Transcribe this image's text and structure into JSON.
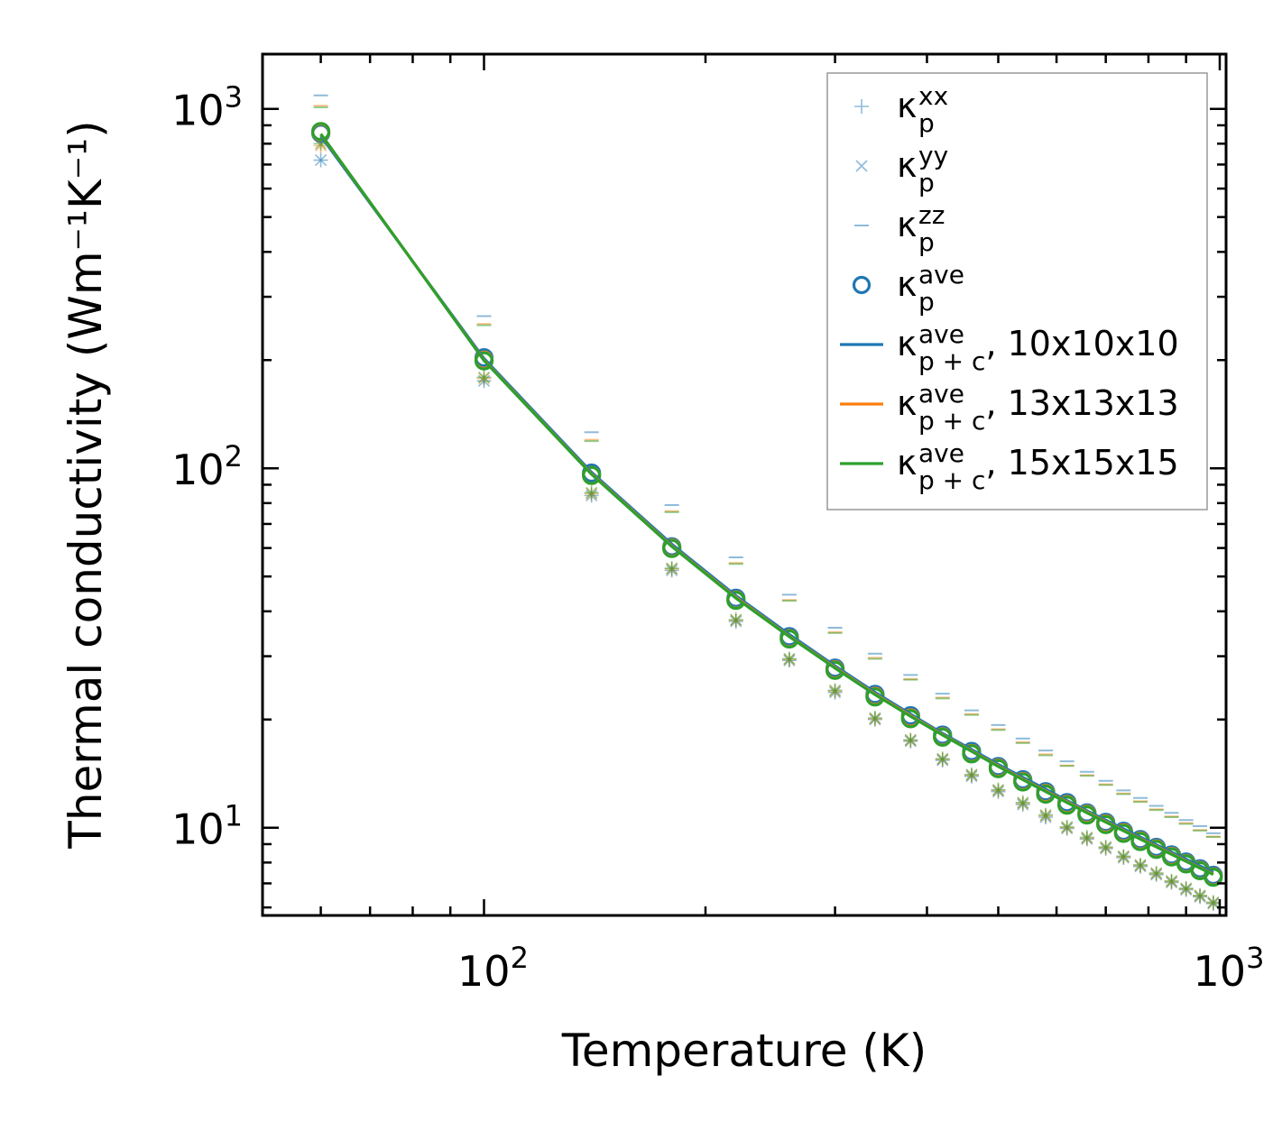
{
  "chart_data": {
    "type": "line",
    "xscale": "log",
    "yscale": "log",
    "xlabel": "Temperature (K)",
    "ylabel": "Thermal conductivity (Wm⁻¹K⁻¹)",
    "xlim": [
      50,
      1020
    ],
    "ylim": [
      5.7,
      1420
    ],
    "x_ticks": [
      {
        "value": 100,
        "label_base": "10",
        "label_exp": "2"
      },
      {
        "value": 1000,
        "label_base": "10",
        "label_exp": "3"
      }
    ],
    "y_ticks": [
      {
        "value": 10,
        "label_base": "10",
        "label_exp": "1"
      },
      {
        "value": 100,
        "label_base": "10",
        "label_exp": "2"
      },
      {
        "value": 1000,
        "label_base": "10",
        "label_exp": "3"
      }
    ],
    "x": [
      60,
      100,
      140,
      180,
      220,
      260,
      300,
      340,
      380,
      420,
      460,
      500,
      540,
      580,
      620,
      660,
      700,
      740,
      780,
      820,
      860,
      900,
      940,
      980
    ],
    "grids": [
      {
        "name": "10x10x10",
        "color": "#1f77b4",
        "kp_xx": [
          720,
          175,
          84,
          52,
          37.5,
          29.2,
          23.8,
          20.0,
          17.4,
          15.4,
          13.9,
          12.6,
          11.6,
          10.7,
          9.95,
          9.3,
          8.75,
          8.25,
          7.8,
          7.4,
          7.04,
          6.72,
          6.42,
          6.15
        ],
        "kp_yy": [
          720,
          175,
          84,
          52,
          37.5,
          29.2,
          23.8,
          20.0,
          17.4,
          15.4,
          13.9,
          12.6,
          11.6,
          10.7,
          9.95,
          9.3,
          8.75,
          8.25,
          7.8,
          7.4,
          7.04,
          6.72,
          6.42,
          6.15
        ],
        "kp_zz": [
          1090,
          265,
          126,
          79,
          56.5,
          44.5,
          36.0,
          30.5,
          26.6,
          23.6,
          21.2,
          19.3,
          17.7,
          16.4,
          15.3,
          14.3,
          13.5,
          12.7,
          12.1,
          11.5,
          11.0,
          10.5,
          10.1,
          9.65
        ],
        "kp_ave": [
          855,
          203,
          97,
          60.5,
          43.5,
          34.0,
          27.8,
          23.5,
          20.5,
          18.1,
          16.3,
          14.8,
          13.6,
          12.6,
          11.75,
          11.0,
          10.35,
          9.78,
          9.27,
          8.82,
          8.4,
          8.03,
          7.69,
          7.37
        ],
        "kpc_ave": [
          840,
          202,
          97.5,
          61.5,
          44.2,
          34.5,
          28.2,
          23.8,
          20.7,
          18.3,
          16.5,
          15.0,
          13.8,
          12.8,
          11.9,
          11.15,
          10.5,
          9.93,
          9.42,
          8.96,
          8.55,
          8.17,
          7.83,
          7.51
        ]
      },
      {
        "name": "13x13x13",
        "color": "#ff7f0e",
        "kp_xx": [
          790,
          178,
          85,
          52.5,
          37.8,
          29.4,
          24.0,
          20.1,
          17.5,
          15.5,
          14.0,
          12.7,
          11.7,
          10.8,
          10.0,
          9.35,
          8.8,
          8.3,
          7.85,
          7.45,
          7.08,
          6.76,
          6.46,
          6.18
        ],
        "kp_yy": [
          790,
          178,
          85,
          52.5,
          37.8,
          29.4,
          24.0,
          20.1,
          17.5,
          15.5,
          14.0,
          12.7,
          11.7,
          10.8,
          10.0,
          9.35,
          8.8,
          8.3,
          7.85,
          7.45,
          7.08,
          6.76,
          6.46,
          6.18
        ],
        "kp_zz": [
          1020,
          252,
          120,
          76,
          54.5,
          43.0,
          35.0,
          29.7,
          25.9,
          23.0,
          20.7,
          18.8,
          17.3,
          16.0,
          14.9,
          14.0,
          13.2,
          12.45,
          11.85,
          11.25,
          10.75,
          10.3,
          9.85,
          9.45
        ],
        "kp_ave": [
          862,
          200,
          95.5,
          60.0,
          43.0,
          33.6,
          27.5,
          23.2,
          20.2,
          17.9,
          16.1,
          14.65,
          13.45,
          12.45,
          11.6,
          10.9,
          10.25,
          9.68,
          9.18,
          8.73,
          8.32,
          7.95,
          7.61,
          7.3
        ],
        "kpc_ave": [
          850,
          200,
          96.5,
          60.8,
          43.7,
          34.1,
          27.9,
          23.55,
          20.5,
          18.15,
          16.35,
          14.85,
          13.65,
          12.65,
          11.8,
          11.05,
          10.4,
          9.83,
          9.32,
          8.87,
          8.46,
          8.08,
          7.74,
          7.43
        ]
      },
      {
        "name": "15x15x15",
        "color": "#2ca02c",
        "kp_xx": [
          800,
          179,
          85.5,
          52.7,
          37.9,
          29.5,
          24.1,
          20.2,
          17.55,
          15.55,
          14.05,
          12.75,
          11.75,
          10.85,
          10.05,
          9.4,
          8.84,
          8.33,
          7.88,
          7.48,
          7.11,
          6.78,
          6.48,
          6.2
        ],
        "kp_yy": [
          800,
          179,
          85.5,
          52.7,
          37.9,
          29.5,
          24.1,
          20.2,
          17.55,
          15.55,
          14.05,
          12.75,
          11.75,
          10.85,
          10.05,
          9.4,
          8.84,
          8.33,
          7.88,
          7.48,
          7.11,
          6.78,
          6.48,
          6.2
        ],
        "kp_zz": [
          1010,
          250,
          119,
          75.5,
          54.2,
          42.8,
          34.8,
          29.5,
          25.8,
          22.9,
          20.6,
          18.7,
          17.2,
          15.9,
          14.85,
          13.95,
          13.15,
          12.4,
          11.8,
          11.2,
          10.7,
          10.25,
          9.82,
          9.42
        ],
        "kp_ave": [
          865,
          199,
          95.5,
          59.8,
          42.9,
          33.5,
          27.4,
          23.1,
          20.1,
          17.85,
          16.05,
          14.6,
          13.4,
          12.4,
          11.55,
          10.85,
          10.2,
          9.64,
          9.15,
          8.7,
          8.29,
          7.93,
          7.59,
          7.28
        ],
        "kpc_ave": [
          852,
          199.5,
          96.2,
          60.6,
          43.5,
          34.0,
          27.8,
          23.45,
          20.4,
          18.1,
          16.3,
          14.8,
          13.6,
          12.6,
          11.75,
          11.0,
          10.36,
          9.8,
          9.29,
          8.84,
          8.43,
          8.06,
          7.72,
          7.41
        ]
      }
    ],
    "legend": {
      "position": "upper right",
      "entries": [
        {
          "marker": "plus",
          "main": "κ",
          "sub": "p",
          "sup": "xx",
          "suffix": ""
        },
        {
          "marker": "x",
          "main": "κ",
          "sub": "p",
          "sup": "yy",
          "suffix": ""
        },
        {
          "marker": "hline",
          "main": "κ",
          "sub": "p",
          "sup": "zz",
          "suffix": ""
        },
        {
          "marker": "circle",
          "main": "κ",
          "sub": "p",
          "sup": "ave",
          "suffix": ""
        },
        {
          "marker": "line",
          "color": "#1f77b4",
          "main": "κ",
          "sub": "p + c",
          "sup": "ave",
          "suffix": ", 10x10x10"
        },
        {
          "marker": "line",
          "color": "#ff7f0e",
          "main": "κ",
          "sub": "p + c",
          "sup": "ave",
          "suffix": ", 13x13x13"
        },
        {
          "marker": "line",
          "color": "#2ca02c",
          "main": "κ",
          "sub": "p + c",
          "sup": "ave",
          "suffix": ", 15x15x15"
        }
      ]
    },
    "legend_marker_color": "#1f77b4"
  }
}
